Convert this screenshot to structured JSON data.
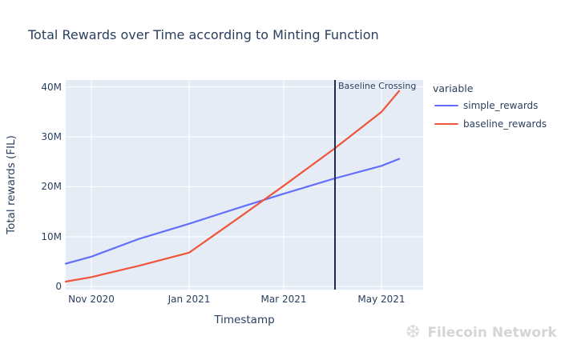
{
  "page": {
    "title": "Total Rewards over Time according to Minting Function"
  },
  "legend": {
    "title": "variable",
    "items": [
      {
        "label": "simple_rewards",
        "color": "#636efa"
      },
      {
        "label": "baseline_rewards",
        "color": "#ef553b"
      }
    ]
  },
  "annotation": {
    "label": "Baseline Crossing"
  },
  "watermark": {
    "label": "Filecoin Network",
    "icon": "snowflake"
  },
  "chart_data": {
    "type": "line",
    "title": "Total Rewards over Time according to Minting Function",
    "xlabel": "Timestamp",
    "ylabel": "Total rewards (FIL)",
    "units": "millions of FIL",
    "grid": true,
    "legend_position": "right",
    "plot_bg": "#e5ecf6",
    "grid_color": "#ffffff",
    "x": [
      "2020-10-16",
      "2020-11-01",
      "2020-12-01",
      "2021-01-01",
      "2021-02-01",
      "2021-03-01",
      "2021-04-01",
      "2021-05-01",
      "2021-05-12"
    ],
    "series": [
      {
        "name": "simple_rewards",
        "color": "#636efa",
        "values_millions": [
          4.6,
          6.0,
          9.6,
          12.6,
          15.8,
          18.6,
          21.6,
          24.2,
          25.6
        ]
      },
      {
        "name": "baseline_rewards",
        "color": "#ef553b",
        "values_millions": [
          1.0,
          1.9,
          4.2,
          6.8,
          13.8,
          20.2,
          27.5,
          35.0,
          39.2
        ]
      }
    ],
    "yaxis": {
      "ticks": [
        0,
        10,
        20,
        30,
        40
      ],
      "ticklabels": [
        "0",
        "10M",
        "20M",
        "30M",
        "40M"
      ],
      "range_millions": [
        -0.6,
        41.4
      ]
    },
    "xaxis": {
      "tickdates": [
        "2020-11-01",
        "2021-01-01",
        "2021-03-01",
        "2021-05-01"
      ],
      "ticklabels": [
        "Nov 2020",
        "Jan 2021",
        "Mar 2021",
        "May 2021"
      ],
      "range": [
        "2020-10-16",
        "2021-05-27"
      ]
    },
    "vline": {
      "date": "2021-04-02",
      "color": "#1d2b50",
      "label": "Baseline Crossing"
    }
  }
}
